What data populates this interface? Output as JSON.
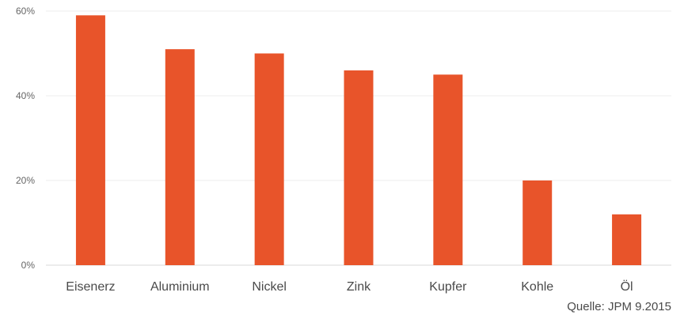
{
  "chart_data": {
    "type": "bar",
    "categories": [
      "Eisenerz",
      "Aluminium",
      "Nickel",
      "Zink",
      "Kupfer",
      "Kohle",
      "Öl"
    ],
    "values": [
      59,
      51,
      50,
      46,
      45,
      20,
      12
    ],
    "ylim": [
      0,
      60
    ],
    "yticks": [
      "0%",
      "20%",
      "40%",
      "60%"
    ],
    "grid": true,
    "bar_color": "#e8542a",
    "source_note": "Quelle: JPM 9.2015"
  }
}
